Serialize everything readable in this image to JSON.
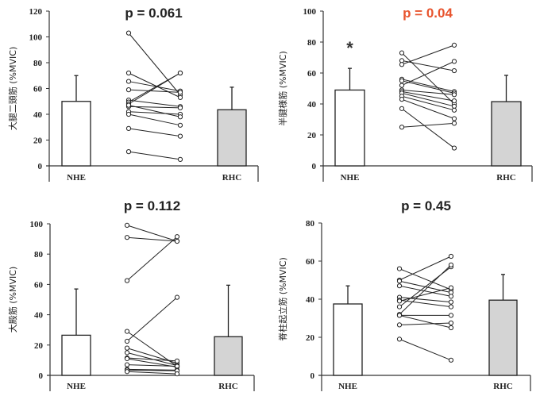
{
  "chart_data": [
    {
      "type": "bar",
      "title": "p = 0.061",
      "title_color": "#222222",
      "ylabel": "大腿二頭筋 (%MVIC)",
      "xlabel": "",
      "categories": [
        "NHE",
        "RHC"
      ],
      "ylim": [
        0,
        120
      ],
      "yticks": [
        0,
        20,
        40,
        60,
        80,
        100,
        120
      ],
      "bars": [
        {
          "name": "NHE",
          "mean": 50,
          "sd": 20,
          "fill": "#ffffff"
        },
        {
          "name": "RHC",
          "mean": 43.5,
          "sd": 17.5,
          "fill": "#d4d4d4"
        }
      ],
      "paired_points": [
        [
          103,
          55
        ],
        [
          72,
          53
        ],
        [
          65.5,
          58
        ],
        [
          59,
          57
        ],
        [
          51,
          46
        ],
        [
          49.5,
          72
        ],
        [
          48,
          72
        ],
        [
          46,
          45
        ],
        [
          42,
          40
        ],
        [
          40,
          31.5
        ],
        [
          47,
          38
        ],
        [
          29,
          23
        ],
        [
          11,
          5
        ]
      ],
      "annotation": ""
    },
    {
      "type": "bar",
      "title": "p = 0.04",
      "title_color": "#e8542e",
      "ylabel": "半腱様筋 (%MVIC)",
      "xlabel": "",
      "categories": [
        "NHE",
        "RHC"
      ],
      "ylim": [
        0,
        100
      ],
      "yticks": [
        0,
        20,
        40,
        60,
        80,
        100
      ],
      "bars": [
        {
          "name": "NHE",
          "mean": 49,
          "sd": 14,
          "fill": "#ffffff"
        },
        {
          "name": "RHC",
          "mean": 41.5,
          "sd": 17,
          "fill": "#d4d4d4"
        }
      ],
      "paired_points": [
        [
          73,
          40
        ],
        [
          68,
          61.5
        ],
        [
          65.5,
          78
        ],
        [
          56,
          48
        ],
        [
          55,
          47
        ],
        [
          52,
          67.5
        ],
        [
          49,
          46
        ],
        [
          48,
          42
        ],
        [
          47,
          38.5
        ],
        [
          45,
          36
        ],
        [
          43,
          30.5
        ],
        [
          37,
          11.5
        ],
        [
          25,
          27.5
        ]
      ],
      "annotation": "*"
    },
    {
      "type": "bar",
      "title": "p = 0.112",
      "title_color": "#222222",
      "ylabel": "大殿筋 (%MVIC)",
      "xlabel": "",
      "categories": [
        "NHE",
        "RHC"
      ],
      "ylim": [
        0,
        100
      ],
      "yticks": [
        0,
        20,
        40,
        60,
        80,
        100
      ],
      "bars": [
        {
          "name": "NHE",
          "mean": 26.5,
          "sd": 30.5,
          "fill": "#ffffff"
        },
        {
          "name": "RHC",
          "mean": 25.5,
          "sd": 34,
          "fill": "#d4d4d4"
        }
      ],
      "paired_points": [
        [
          99,
          88.5
        ],
        [
          91,
          88.5
        ],
        [
          62.5,
          91.5
        ],
        [
          29,
          6
        ],
        [
          22.5,
          51.5
        ],
        [
          18,
          8
        ],
        [
          15,
          6.5
        ],
        [
          11.5,
          9.5
        ],
        [
          11,
          5.5
        ],
        [
          7,
          6
        ],
        [
          4,
          3.5
        ],
        [
          3.5,
          3
        ],
        [
          2.5,
          1
        ]
      ],
      "annotation": ""
    },
    {
      "type": "bar",
      "title": "p = 0.45",
      "title_color": "#222222",
      "ylabel": "脊柱起立筋 (%MVIC)",
      "xlabel": "",
      "categories": [
        "NHE",
        "RHC"
      ],
      "ylim": [
        0,
        80
      ],
      "yticks": [
        0,
        20,
        40,
        60,
        80
      ],
      "bars": [
        {
          "name": "NHE",
          "mean": 37.5,
          "sd": 9.5,
          "fill": "#ffffff"
        },
        {
          "name": "RHC",
          "mean": 39.5,
          "sd": 13.5,
          "fill": "#d4d4d4"
        }
      ],
      "paired_points": [
        [
          56,
          45
        ],
        [
          50,
          62.5
        ],
        [
          49.5,
          43.5
        ],
        [
          47,
          41.5
        ],
        [
          41,
          38.5
        ],
        [
          39.5,
          36
        ],
        [
          39,
          46
        ],
        [
          36,
          57
        ],
        [
          32,
          58
        ],
        [
          31.5,
          31.5
        ],
        [
          31.5,
          25
        ],
        [
          26.5,
          27.5
        ],
        [
          19,
          8
        ]
      ],
      "annotation": ""
    }
  ]
}
